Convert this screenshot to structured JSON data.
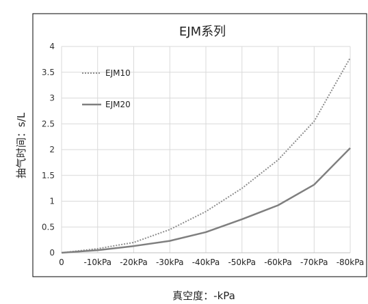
{
  "chart_data": {
    "type": "line",
    "title": "EJM系列",
    "xlabel": "真空度：-kPa",
    "ylabel": "抽气时间：s/L",
    "categories": [
      "0",
      "-10kPa",
      "-20kPa",
      "-30kPa",
      "-40kPa",
      "-50kPa",
      "-60kPa",
      "-70kPa",
      "-80kPa"
    ],
    "ylim": [
      0,
      4
    ],
    "yticks": [
      "0",
      "0.5",
      "1",
      "1.5",
      "2",
      "2.5",
      "3",
      "3.5",
      "4"
    ],
    "grid": true,
    "legend_position": "top-left",
    "series": [
      {
        "name": "EJM10",
        "style": "dotted",
        "color": "#8c8c8c",
        "values": [
          0,
          0.08,
          0.2,
          0.45,
          0.8,
          1.25,
          1.8,
          2.55,
          3.78
        ]
      },
      {
        "name": "EJM20",
        "style": "solid",
        "color": "#7f7f7f",
        "values": [
          0,
          0.05,
          0.13,
          0.23,
          0.4,
          0.65,
          0.92,
          1.32,
          2.03
        ]
      }
    ]
  }
}
